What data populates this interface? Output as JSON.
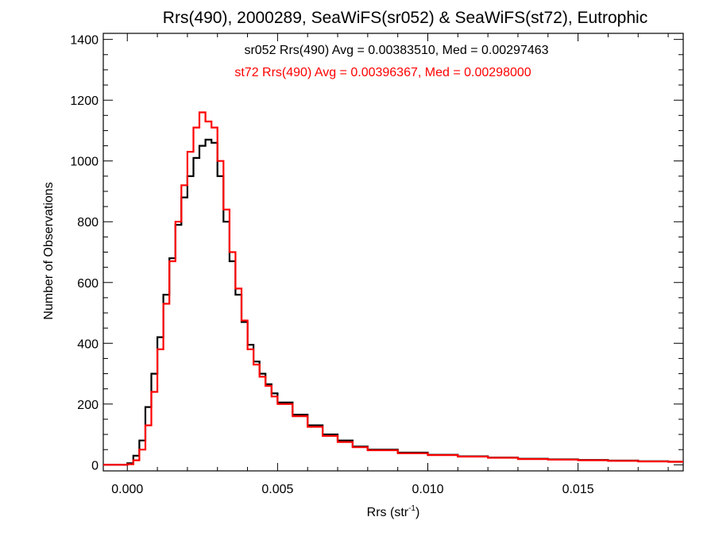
{
  "chart_data": {
    "type": "line",
    "title": "Rrs(490), 2000289, SeaWiFS(sr052) & SeaWiFS(st72), Eutrophic",
    "xlabel": "Rrs (str",
    "xlabel_sup": "-1",
    "xlabel_close": ")",
    "ylabel": "Number of Observations",
    "xlim": [
      -0.0008,
      0.0185
    ],
    "ylim": [
      -20,
      1420
    ],
    "xticks": [
      0.0,
      0.005,
      0.01,
      0.015
    ],
    "xtick_labels": [
      "0.000",
      "0.005",
      "0.010",
      "0.015"
    ],
    "yticks": [
      0,
      200,
      400,
      600,
      800,
      1000,
      1200,
      1400
    ],
    "ytick_labels": [
      "0",
      "200",
      "400",
      "600",
      "800",
      "1000",
      "1200",
      "1400"
    ],
    "step_style": "histogram",
    "annotations": [
      "sr052 Rrs(490) Avg = 0.00383510, Med = 0.00297463",
      "st72 Rrs(490) Avg = 0.00396367, Med = 0.00298000"
    ],
    "series": [
      {
        "name": "sr052",
        "color": "#000000",
        "x": [
          -0.0008,
          0.0,
          0.0002,
          0.0004,
          0.0006,
          0.0008,
          0.001,
          0.0012,
          0.0014,
          0.0016,
          0.0018,
          0.002,
          0.0022,
          0.0024,
          0.0026,
          0.0028,
          0.003,
          0.0032,
          0.0034,
          0.0036,
          0.0038,
          0.004,
          0.0042,
          0.0044,
          0.0046,
          0.0048,
          0.005,
          0.0055,
          0.006,
          0.0065,
          0.007,
          0.0075,
          0.008,
          0.009,
          0.01,
          0.011,
          0.012,
          0.013,
          0.014,
          0.015,
          0.016,
          0.017,
          0.018,
          0.0185
        ],
        "y": [
          0,
          5,
          30,
          80,
          190,
          300,
          420,
          560,
          680,
          790,
          880,
          950,
          1010,
          1050,
          1070,
          1060,
          950,
          800,
          670,
          560,
          470,
          395,
          340,
          300,
          265,
          235,
          205,
          165,
          130,
          100,
          80,
          60,
          50,
          40,
          33,
          28,
          24,
          20,
          18,
          16,
          14,
          12,
          10,
          10
        ]
      },
      {
        "name": "st72",
        "color": "#ff0000",
        "x": [
          -0.0008,
          0.0,
          0.0002,
          0.0004,
          0.0006,
          0.0008,
          0.001,
          0.0012,
          0.0014,
          0.0016,
          0.0018,
          0.002,
          0.0022,
          0.0024,
          0.0026,
          0.0028,
          0.003,
          0.0032,
          0.0034,
          0.0036,
          0.0038,
          0.004,
          0.0042,
          0.0044,
          0.0046,
          0.0048,
          0.005,
          0.0055,
          0.006,
          0.0065,
          0.007,
          0.0075,
          0.008,
          0.009,
          0.01,
          0.011,
          0.012,
          0.013,
          0.014,
          0.015,
          0.016,
          0.017,
          0.018,
          0.0185
        ],
        "y": [
          0,
          2,
          15,
          50,
          130,
          240,
          380,
          530,
          670,
          800,
          920,
          1030,
          1110,
          1160,
          1130,
          1110,
          1000,
          840,
          700,
          580,
          475,
          380,
          330,
          290,
          260,
          225,
          200,
          160,
          125,
          95,
          75,
          58,
          48,
          38,
          32,
          27,
          23,
          19,
          17,
          15,
          13,
          11,
          10,
          10
        ]
      }
    ]
  }
}
